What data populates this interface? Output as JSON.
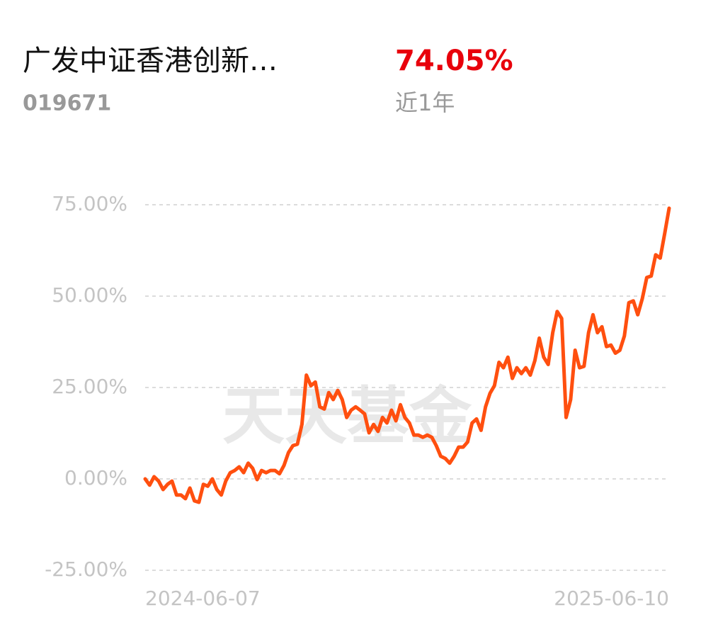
{
  "header": {
    "title": "广发中证香港创新…",
    "code": "019671",
    "return": "74.05%",
    "period": "近1年"
  },
  "chart_data": {
    "type": "line",
    "watermark": "天天基金",
    "categories": [
      "2024-06-07",
      null,
      null,
      null,
      null,
      null,
      null,
      null,
      null,
      null,
      null,
      null,
      null,
      null,
      null,
      null,
      null,
      null,
      null,
      null,
      null,
      null,
      null,
      null,
      null,
      null,
      null,
      null,
      null,
      null,
      null,
      null,
      null,
      null,
      null,
      null,
      null,
      null,
      null,
      null,
      null,
      null,
      null,
      null,
      null,
      null,
      null,
      null,
      null,
      null,
      null,
      null,
      null,
      null,
      null,
      null,
      null,
      null,
      null,
      null,
      null,
      null,
      null,
      null,
      null,
      null,
      null,
      null,
      null,
      null,
      null,
      null,
      null,
      null,
      null,
      null,
      null,
      null,
      null,
      null,
      null,
      null,
      null,
      null,
      null,
      null,
      null,
      null,
      null,
      null,
      null,
      null,
      null,
      null,
      null,
      null,
      null,
      null,
      null,
      null,
      null,
      null,
      null,
      null,
      null,
      null,
      null,
      null,
      null,
      null,
      null,
      null,
      null,
      null,
      null,
      null,
      null,
      "2025-06-10"
    ],
    "series": [
      {
        "color": "#ff4f0f",
        "values": [
          0,
          -1.7,
          0.6,
          -0.6,
          -2.9,
          -1.5,
          -0.6,
          -4.4,
          -4.4,
          -5.4,
          -2.5,
          -6,
          -6.4,
          -1.5,
          -2,
          0,
          -2.9,
          -4.4,
          -0.6,
          1.7,
          2.3,
          3.3,
          1.7,
          4.3,
          2.9,
          -0.2,
          2.3,
          1.7,
          2.3,
          2.3,
          1.4,
          3.7,
          7.2,
          9.1,
          9.5,
          14.9,
          28.4,
          25.5,
          26.5,
          19.7,
          19.1,
          23.6,
          21.7,
          24.2,
          21.7,
          16.8,
          18.8,
          19.7,
          18.8,
          17.8,
          12.6,
          14.9,
          13,
          16.8,
          15.3,
          18.8,
          15.9,
          20.3,
          16.8,
          15.3,
          12,
          12,
          11.4,
          12,
          11.4,
          9.1,
          6.2,
          5.6,
          4.3,
          6.2,
          8.7,
          8.7,
          10.1,
          15.3,
          16.4,
          13.3,
          19.7,
          23.4,
          25.5,
          31.9,
          30.4,
          33.3,
          27.5,
          30.4,
          28.8,
          30.4,
          28.4,
          32.3,
          38.5,
          33.3,
          31.3,
          40,
          45.8,
          43.9,
          16.8,
          21.7,
          35.2,
          30.4,
          30.8,
          40,
          44.9,
          40,
          41.6,
          36.2,
          36.6,
          34.4,
          35.2,
          39.1,
          48.2,
          48.7,
          44.9,
          49.3,
          55.1,
          55.5,
          61.3,
          60.4,
          67.1,
          74.05
        ]
      }
    ],
    "ylim": [
      -25,
      75
    ],
    "yticks": [
      {
        "value": -25,
        "label": "-25.00%"
      },
      {
        "value": 0,
        "label": "0.00%"
      },
      {
        "value": 25,
        "label": "25.00%"
      },
      {
        "value": 50,
        "label": "50.00%"
      },
      {
        "value": 75,
        "label": "75.00%"
      }
    ],
    "grid": true
  }
}
